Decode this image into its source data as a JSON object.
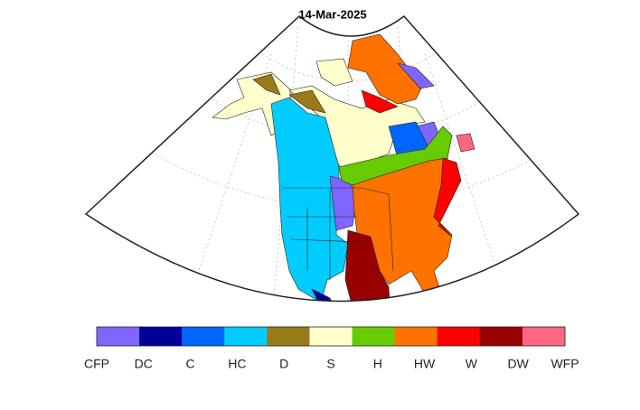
{
  "title": "14-Mar-2025",
  "legend": {
    "labels": [
      "CFP",
      "DC",
      "C",
      "HC",
      "D",
      "S",
      "H",
      "HW",
      "W",
      "DW",
      "WFP"
    ],
    "colors": [
      "#8066ff",
      "#000099",
      "#0066ff",
      "#00ccff",
      "#997a1a",
      "#ffffcc",
      "#66cc00",
      "#ff7200",
      "#ff0000",
      "#990000",
      "#ff6680"
    ]
  }
}
